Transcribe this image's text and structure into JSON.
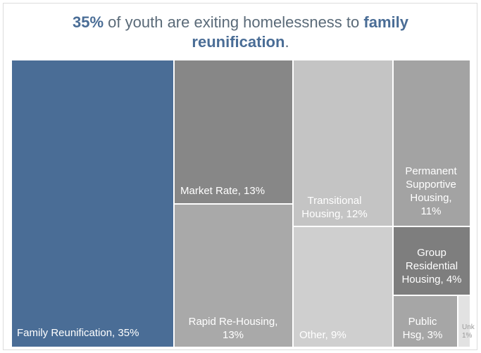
{
  "title": {
    "value": "35%",
    "middle": " of youth  are exiting homelessness to ",
    "highlight_1": "family",
    "highlight_2": "reunification",
    "end": "."
  },
  "chart_data": {
    "type": "treemap",
    "title": "35% of youth are exiting homelessness to family reunification.",
    "unit": "%",
    "items": [
      {
        "category": "Family Reunification",
        "value": 35,
        "label": [
          "Family Reunification, 35%"
        ],
        "color": "#4a6d96"
      },
      {
        "category": "Market Rate",
        "value": 13,
        "label": [
          "Market Rate, 13%"
        ],
        "color": "#878787"
      },
      {
        "category": "Rapid Re-Housing",
        "value": 13,
        "label": [
          "Rapid Re-Housing,",
          "13%"
        ],
        "color": "#a9a9a9"
      },
      {
        "category": "Transitional Housing",
        "value": 12,
        "label": [
          "Transitional",
          "Housing, 12%"
        ],
        "color": "#c4c4c4"
      },
      {
        "category": "Other",
        "value": 9,
        "label": [
          "Other, 9%"
        ],
        "color": "#cfcfcf"
      },
      {
        "category": "Permanent Supportive Housing",
        "value": 11,
        "label": [
          "Permanent",
          "Supportive",
          "Housing,",
          "11%"
        ],
        "color": "#a3a3a3"
      },
      {
        "category": "Group Residential Housing",
        "value": 4,
        "label": [
          "Group",
          "Residential",
          "Housing, 4%"
        ],
        "color": "#7e7e7e"
      },
      {
        "category": "Public Hsg",
        "value": 3,
        "label": [
          "Public",
          "Hsg, 3%"
        ],
        "color": "#a6a6a6"
      },
      {
        "category": "Unk",
        "value": 1,
        "label": [
          "Unk",
          "1%"
        ],
        "color": "#e2e2e2"
      }
    ]
  }
}
